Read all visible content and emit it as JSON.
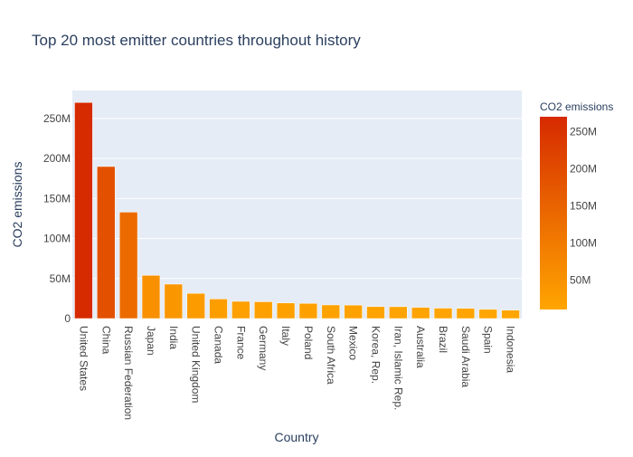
{
  "chart_data": {
    "type": "bar",
    "title": "Top 20 most emitter countries throughout history",
    "xlabel": "Country",
    "ylabel": "CO2 emissions",
    "categories": [
      "United States",
      "China",
      "Russian Federation",
      "Japan",
      "India",
      "United Kingdom",
      "Canada",
      "France",
      "Germany",
      "Italy",
      "Poland",
      "South Africa",
      "Mexico",
      "Korea, Rep.",
      "Iran, Islamic Rep.",
      "Australia",
      "Brazil",
      "Saudi Arabia",
      "Spain",
      "Indonesia"
    ],
    "values": [
      270000000,
      190000000,
      133000000,
      54000000,
      43000000,
      31500000,
      24500000,
      21500000,
      21000000,
      19500000,
      19000000,
      17000000,
      16800000,
      15000000,
      14800000,
      14000000,
      13000000,
      12800000,
      11500000,
      10500000
    ],
    "ylim": [
      0,
      285000000
    ],
    "y_ticks": [
      0,
      50000000,
      100000000,
      150000000,
      200000000,
      250000000
    ],
    "y_tick_labels": [
      "0",
      "50M",
      "100M",
      "150M",
      "200M",
      "250M"
    ],
    "grid": true,
    "colorbar": {
      "title": "CO2 emissions",
      "ticks": [
        50000000,
        100000000,
        150000000,
        200000000,
        250000000
      ],
      "tick_labels": [
        "50M",
        "100M",
        "150M",
        "200M",
        "250M"
      ],
      "colors": {
        "low": "#ffa500",
        "high": "#d62a00"
      }
    },
    "colors": {
      "plot_bg": "#e5ecf6",
      "grid": "#ffffff",
      "text": "#2a3f5f",
      "tick_text": "#444444"
    }
  }
}
